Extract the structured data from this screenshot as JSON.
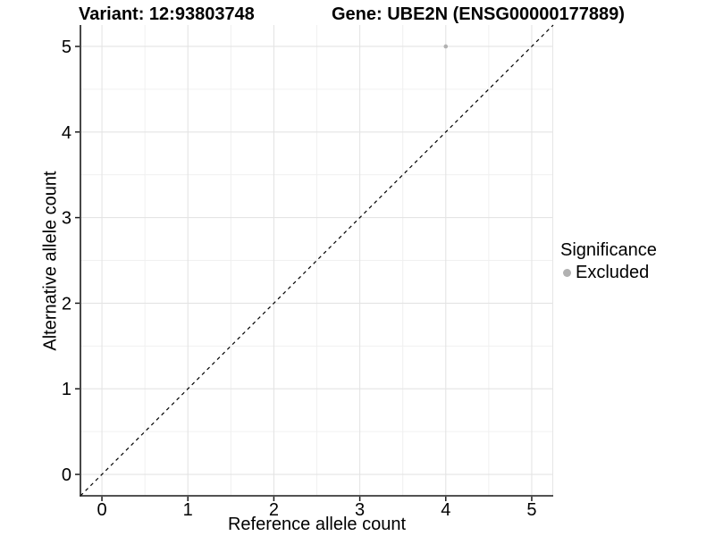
{
  "chart_data": {
    "type": "scatter",
    "title_left": "Variant: 12:93803748",
    "title_right": "Gene: UBE2N (ENSG00000177889)",
    "xlabel": "Reference allele count",
    "ylabel": "Alternative allele count",
    "xlim": [
      -0.25,
      5.25
    ],
    "ylim": [
      -0.25,
      5.25
    ],
    "x_ticks": [
      0,
      1,
      2,
      3,
      4,
      5
    ],
    "y_ticks": [
      0,
      1,
      2,
      3,
      4,
      5
    ],
    "grid": "major+minor",
    "reference_line": {
      "type": "identity y=x",
      "style": "dashed",
      "color": "#000000"
    },
    "series": [
      {
        "name": "Excluded",
        "color": "#b1b1b1",
        "point_radius": 2.3,
        "points": [
          {
            "x": 4,
            "y": 5
          }
        ]
      }
    ],
    "legend": {
      "title": "Significance",
      "position": "right",
      "items": [
        {
          "label": "Excluded",
          "color": "#b1b1b1"
        }
      ]
    }
  },
  "colors": {
    "background": "#ffffff",
    "grid_major": "#e4e4e4",
    "grid_minor": "#f0f0f0",
    "axis_line": "#1a1a1a",
    "tick_text": "#000000",
    "panel_edge": "#e6e6e6"
  }
}
